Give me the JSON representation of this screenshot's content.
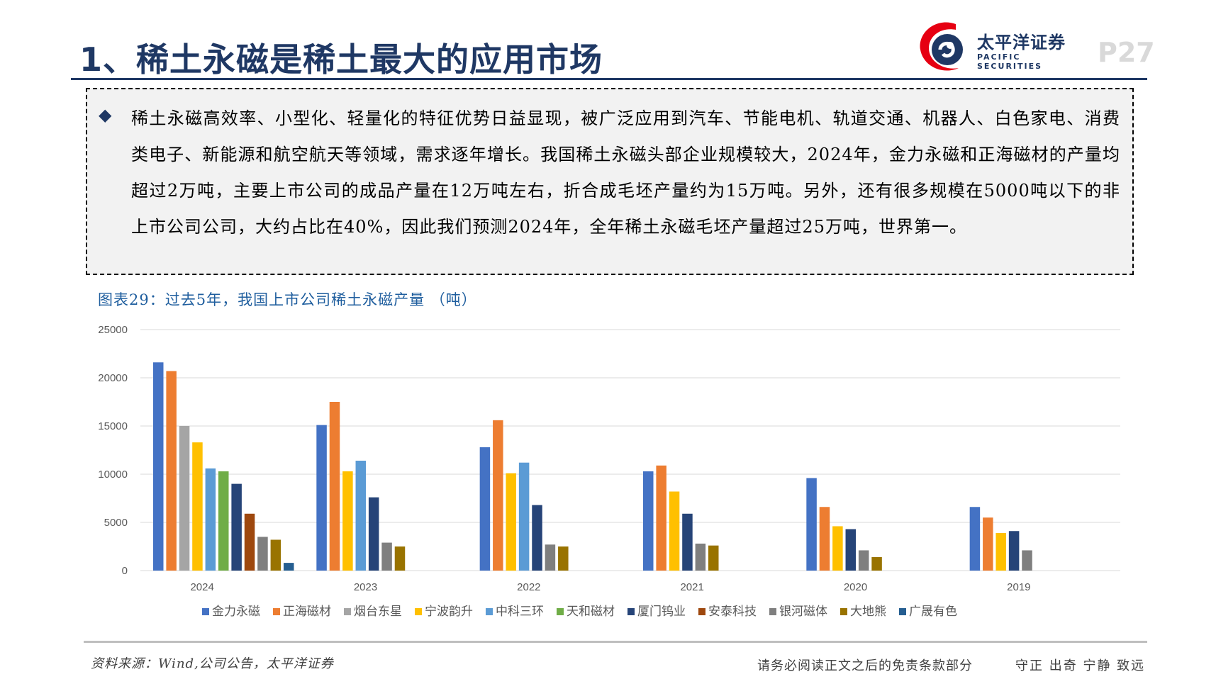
{
  "header": {
    "title": "1、稀土永磁是稀土最大的应用市场",
    "logo_cn": "太平洋证券",
    "logo_en": "PACIFIC SECURITIES",
    "page": "P27"
  },
  "body": {
    "bullet": "◆",
    "paragraph": "稀土永磁高效率、小型化、轻量化的特征优势日益显现，被广泛应用到汽车、节能电机、轨道交通、机器人、白色家电、消费类电子、新能源和航空航天等领域，需求逐年增长。我国稀土永磁头部企业规模较大，2024年，金力永磁和正海磁材的产量均超过2万吨，主要上市公司的成品产量在12万吨左右，折合成毛坯产量约为15万吨。另外，还有很多规模在5000吨以下的非上市公司公司，大约占比在40%，因此我们预测2024年，全年稀土永磁毛坯产量超过25万吨，世界第一。"
  },
  "chart_caption": "图表29：过去5年，我国上市公司稀土永磁产量  （吨）",
  "chart_data": {
    "type": "bar",
    "categories": [
      "2024",
      "2023",
      "2022",
      "2021",
      "2020",
      "2019"
    ],
    "ylim": [
      0,
      25000
    ],
    "yticks": [
      0,
      5000,
      10000,
      15000,
      20000,
      25000
    ],
    "grid": true,
    "legend_position": "bottom",
    "series": [
      {
        "name": "金力永磁",
        "color": "#4472c4",
        "values": [
          21600,
          15100,
          12800,
          10300,
          9600,
          6600
        ]
      },
      {
        "name": "正海磁材",
        "color": "#ed7d31",
        "values": [
          20700,
          17500,
          15600,
          10900,
          6600,
          5500
        ]
      },
      {
        "name": "烟台东星",
        "color": "#a5a5a5",
        "values": [
          15000,
          null,
          null,
          null,
          null,
          null
        ]
      },
      {
        "name": "宁波韵升",
        "color": "#ffc000",
        "values": [
          13300,
          10300,
          10100,
          8200,
          4600,
          3900
        ]
      },
      {
        "name": "中科三环",
        "color": "#5b9bd5",
        "values": [
          10600,
          11400,
          11200,
          null,
          null,
          null
        ]
      },
      {
        "name": "天和磁材",
        "color": "#70ad47",
        "values": [
          10300,
          null,
          null,
          null,
          null,
          null
        ]
      },
      {
        "name": "厦门钨业",
        "color": "#264478",
        "values": [
          9000,
          7600,
          6800,
          5900,
          4300,
          4100
        ]
      },
      {
        "name": "安泰科技",
        "color": "#9e480e",
        "values": [
          5900,
          null,
          null,
          null,
          null,
          null
        ]
      },
      {
        "name": "银河磁体",
        "color": "#7f7f7f",
        "values": [
          3500,
          2900,
          2700,
          2800,
          2100,
          2100
        ]
      },
      {
        "name": "大地熊",
        "color": "#997300",
        "values": [
          3200,
          2500,
          2500,
          2600,
          1400,
          null
        ]
      },
      {
        "name": "广晟有色",
        "color": "#255e91",
        "values": [
          800,
          null,
          null,
          null,
          null,
          null
        ]
      }
    ]
  },
  "footer": {
    "source": "资料来源：Wind,公司公告，太平洋证券",
    "disclaimer": "请务必阅读正文之后的免责条款部分",
    "slogan": "守正  出奇  宁静  致远"
  }
}
